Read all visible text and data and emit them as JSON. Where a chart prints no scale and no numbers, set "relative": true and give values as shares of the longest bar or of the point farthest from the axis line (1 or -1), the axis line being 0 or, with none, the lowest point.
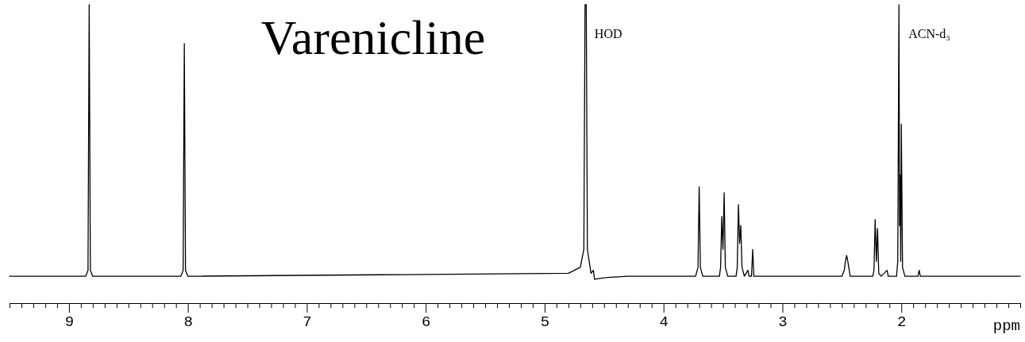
{
  "chart_data": {
    "type": "line",
    "title": "Varenicline",
    "xlabel": "ppm",
    "relative": true,
    "color": "#000000",
    "xlim": [
      9.5,
      1.0
    ],
    "xticks": [
      {
        "value": 9.5,
        "label": null
      },
      {
        "value": 9.4,
        "label": null
      },
      {
        "value": 9.3,
        "label": null
      },
      {
        "value": 9.2,
        "label": null
      },
      {
        "value": 9.1,
        "label": null
      },
      9,
      {
        "value": 8.9,
        "label": null
      },
      {
        "value": 8.8,
        "label": null
      },
      {
        "value": 8.7,
        "label": null
      },
      {
        "value": 8.6,
        "label": null
      },
      {
        "value": 8.5,
        "label": null
      },
      {
        "value": 8.4,
        "label": null
      },
      {
        "value": 8.3,
        "label": null
      },
      {
        "value": 8.2,
        "label": null
      },
      {
        "value": 8.1,
        "label": null
      },
      8,
      {
        "value": 7.9,
        "label": null
      },
      {
        "value": 7.8,
        "label": null
      },
      {
        "value": 7.7,
        "label": null
      },
      {
        "value": 7.6,
        "label": null
      },
      {
        "value": 7.5,
        "label": null
      },
      {
        "value": 7.4,
        "label": null
      },
      {
        "value": 7.3,
        "label": null
      },
      {
        "value": 7.2,
        "label": null
      },
      {
        "value": 7.1,
        "label": null
      },
      7,
      {
        "value": 6.9,
        "label": null
      },
      {
        "value": 6.8,
        "label": null
      },
      {
        "value": 6.7,
        "label": null
      },
      {
        "value": 6.6,
        "label": null
      },
      {
        "value": 6.5,
        "label": null
      },
      {
        "value": 6.4,
        "label": null
      },
      {
        "value": 6.3,
        "label": null
      },
      {
        "value": 6.2,
        "label": null
      },
      {
        "value": 6.1,
        "label": null
      },
      6,
      {
        "value": 5.9,
        "label": null
      },
      {
        "value": 5.8,
        "label": null
      },
      {
        "value": 5.7,
        "label": null
      },
      {
        "value": 5.6,
        "label": null
      },
      {
        "value": 5.5,
        "label": null
      },
      {
        "value": 5.4,
        "label": null
      },
      {
        "value": 5.3,
        "label": null
      },
      {
        "value": 5.2,
        "label": null
      },
      {
        "value": 5.1,
        "label": null
      },
      5,
      {
        "value": 4.9,
        "label": null
      },
      {
        "value": 4.8,
        "label": null
      },
      {
        "value": 4.7,
        "label": null
      },
      {
        "value": 4.6,
        "label": null
      },
      {
        "value": 4.5,
        "label": null
      },
      {
        "value": 4.4,
        "label": null
      },
      {
        "value": 4.3,
        "label": null
      },
      {
        "value": 4.2,
        "label": null
      },
      {
        "value": 4.1,
        "label": null
      },
      4,
      {
        "value": 3.9,
        "label": null
      },
      {
        "value": 3.8,
        "label": null
      },
      {
        "value": 3.7,
        "label": null
      },
      {
        "value": 3.6,
        "label": null
      },
      {
        "value": 3.5,
        "label": null
      },
      {
        "value": 3.4,
        "label": null
      },
      {
        "value": 3.3,
        "label": null
      },
      {
        "value": 3.2,
        "label": null
      },
      {
        "value": 3.1,
        "label": null
      },
      3,
      {
        "value": 2.9,
        "label": null
      },
      {
        "value": 2.8,
        "label": null
      },
      {
        "value": 2.7,
        "label": null
      },
      {
        "value": 2.6,
        "label": null
      },
      {
        "value": 2.5,
        "label": null
      },
      {
        "value": 2.4,
        "label": null
      },
      {
        "value": 2.3,
        "label": null
      },
      {
        "value": 2.2,
        "label": null
      },
      {
        "value": 2.1,
        "label": null
      },
      2,
      {
        "value": 1.9,
        "label": null
      },
      {
        "value": 1.8,
        "label": null
      },
      {
        "value": 1.7,
        "label": null
      },
      {
        "value": 1.6,
        "label": null
      },
      {
        "value": 1.5,
        "label": null
      },
      {
        "value": 1.4,
        "label": null
      },
      {
        "value": 1.3,
        "label": null
      },
      {
        "value": 1.2,
        "label": null
      },
      {
        "value": 1.1,
        "label": null
      },
      {
        "value": 1.0,
        "label": null
      }
    ],
    "x": [
      9.5,
      8.86,
      8.84,
      8.83,
      8.82,
      8.8,
      8.06,
      8.04,
      8.03,
      8.02,
      8.0,
      4.8,
      4.7,
      4.67,
      4.66,
      4.65,
      4.64,
      4.61,
      4.59,
      4.58,
      4.5,
      4.3,
      3.73,
      3.71,
      3.7,
      3.69,
      3.67,
      3.53,
      3.52,
      3.51,
      3.5,
      3.49,
      3.48,
      3.46,
      3.39,
      3.38,
      3.37,
      3.36,
      3.35,
      3.34,
      3.32,
      3.29,
      3.28,
      3.26,
      3.25,
      3.24,
      2.5,
      2.48,
      2.47,
      2.46,
      2.45,
      2.43,
      2.24,
      2.23,
      2.22,
      2.21,
      2.2,
      2.19,
      2.17,
      2.12,
      2.11,
      2.04,
      2.03,
      2.02,
      2.015,
      2.01,
      2.005,
      2.0,
      1.99,
      1.97,
      1.86,
      1.85,
      1.84,
      1.0
    ],
    "values": [
      0.09,
      0.09,
      0.11,
      1,
      0.11,
      0.09,
      0.09,
      0.11,
      0.87,
      0.11,
      0.09,
      0.1,
      0.12,
      0.18,
      1,
      1,
      0.18,
      0.1,
      0.11,
      0.08,
      0.085,
      0.09,
      0.09,
      0.12,
      0.39,
      0.12,
      0.09,
      0.09,
      0.12,
      0.29,
      0.18,
      0.37,
      0.12,
      0.09,
      0.09,
      0.12,
      0.33,
      0.2,
      0.26,
      0.12,
      0.09,
      0.11,
      0.09,
      0.09,
      0.18,
      0.09,
      0.09,
      0.11,
      0.14,
      0.16,
      0.14,
      0.09,
      0.09,
      0.11,
      0.28,
      0.14,
      0.25,
      0.1,
      0.09,
      0.11,
      0.09,
      0.09,
      0.14,
      1,
      0.26,
      0.43,
      0.14,
      0.6,
      0.12,
      0.09,
      0.09,
      0.11,
      0.09,
      0.09
    ],
    "annotations": [
      {
        "text": "HOD",
        "x": 4.66,
        "y": 1
      },
      {
        "text": "ACN-d₃",
        "x": 2.02,
        "y": 1
      }
    ]
  }
}
